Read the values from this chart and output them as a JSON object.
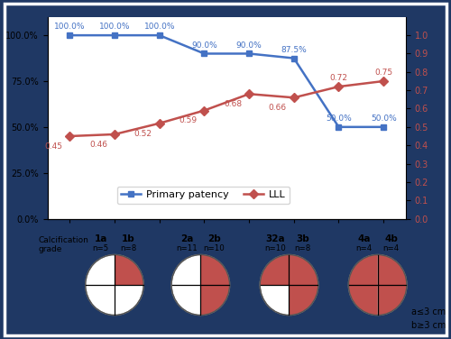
{
  "groups": [
    "1a",
    "1b",
    "2a",
    "2b",
    "32a",
    "3b",
    "4a",
    "4b"
  ],
  "n_values": [
    "n=5",
    "n=8",
    "n=11",
    "n=10",
    "n=10",
    "n=8",
    "n=4",
    "n=4"
  ],
  "primary_patency": [
    100.0,
    100.0,
    100.0,
    90.0,
    90.0,
    87.5,
    50.0,
    50.0
  ],
  "lll": [
    0.45,
    0.46,
    0.52,
    0.59,
    0.68,
    0.66,
    0.72,
    0.75
  ],
  "primary_patency_labels": [
    "100.0%",
    "100.0%",
    "100.0%",
    "90.0%",
    "90.0%",
    "87.5%",
    "50.0%",
    "50.0%"
  ],
  "lll_labels": [
    "0.45",
    "0.46",
    "0.52",
    "0.59",
    "0.68",
    "0.66",
    "0.72",
    "0.75"
  ],
  "blue_color": "#4472C4",
  "red_color": "#C0504D",
  "background_color": "#FFFFFF",
  "outer_background": "#1F3864",
  "legend_primary": "Primary patency",
  "legend_lll": "LLL",
  "pair_labels": [
    [
      "1a",
      "1b"
    ],
    [
      "2a",
      "2b"
    ],
    [
      "32a",
      "3b"
    ],
    [
      "4a",
      "4b"
    ]
  ],
  "pair_ns": [
    [
      "n=5",
      "n=8"
    ],
    [
      "n=11",
      "n=10"
    ],
    [
      "n=10",
      "n=8"
    ],
    [
      "n=4",
      "n=4"
    ]
  ],
  "red_quadrants": [
    [
      1
    ],
    [
      1,
      3
    ],
    [
      0,
      1,
      3
    ],
    [
      0,
      1,
      2,
      3
    ]
  ],
  "note_a": "a≤3 cm",
  "note_b": "b≥3 cm"
}
